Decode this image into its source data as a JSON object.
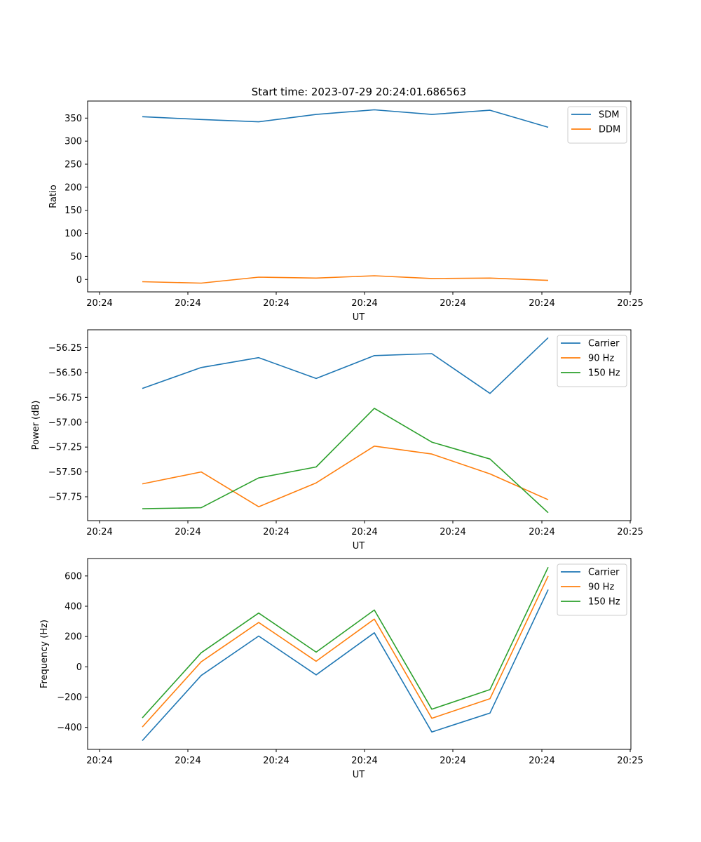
{
  "figure_title": "Start time: 2023-07-29 20:24:01.686563",
  "chart_data": [
    {
      "type": "line",
      "title": "Start time: 2023-07-29 20:24:01.686563",
      "xlabel": "UT",
      "ylabel": "Ratio",
      "xticks": [
        "20:24",
        "20:24",
        "20:24",
        "20:24",
        "20:24",
        "20:24",
        "20:25"
      ],
      "ylim": [
        -27,
        387
      ],
      "yticks": [
        0,
        50,
        100,
        150,
        200,
        250,
        300,
        350
      ],
      "ytick_labels": [
        "0",
        "50",
        "100",
        "150",
        "200",
        "250",
        "300",
        "350"
      ],
      "legend": "top-right",
      "series": [
        {
          "name": "SDM",
          "color": "#1f77b4",
          "values": [
            353,
            347,
            342,
            358,
            368,
            358,
            367,
            330
          ]
        },
        {
          "name": "DDM",
          "color": "#ff7f0e",
          "values": [
            -5,
            -8,
            5,
            3,
            8,
            2,
            3,
            -2
          ]
        }
      ]
    },
    {
      "type": "line",
      "title": "",
      "xlabel": "UT",
      "ylabel": "Power (dB)",
      "xticks": [
        "20:24",
        "20:24",
        "20:24",
        "20:24",
        "20:24",
        "20:24",
        "20:25"
      ],
      "ylim": [
        -57.99,
        -56.07
      ],
      "yticks": [
        -57.75,
        -57.5,
        -57.25,
        -57.0,
        -56.75,
        -56.5,
        -56.25
      ],
      "ytick_labels": [
        "−57.75",
        "−57.50",
        "−57.25",
        "−57.00",
        "−56.75",
        "−56.50",
        "−56.25"
      ],
      "legend": "top-right",
      "series": [
        {
          "name": "Carrier",
          "color": "#1f77b4",
          "values": [
            -56.66,
            -56.45,
            -56.35,
            -56.56,
            -56.33,
            -56.31,
            -56.71,
            -56.15
          ]
        },
        {
          "name": "90 Hz",
          "color": "#ff7f0e",
          "values": [
            -57.62,
            -57.5,
            -57.85,
            -57.61,
            -57.24,
            -57.32,
            -57.52,
            -57.78
          ]
        },
        {
          "name": "150 Hz",
          "color": "#2ca02c",
          "values": [
            -57.87,
            -57.86,
            -57.56,
            -57.45,
            -56.86,
            -57.2,
            -57.37,
            -57.91
          ]
        }
      ]
    },
    {
      "type": "line",
      "title": "",
      "xlabel": "UT",
      "ylabel": "Frequency (Hz)",
      "xticks": [
        "20:24",
        "20:24",
        "20:24",
        "20:24",
        "20:24",
        "20:24",
        "20:25"
      ],
      "ylim": [
        -545,
        715
      ],
      "yticks": [
        -400,
        -200,
        0,
        200,
        400,
        600
      ],
      "ytick_labels": [
        "−400",
        "−200",
        "0",
        "200",
        "400",
        "600"
      ],
      "legend": "top-right",
      "series": [
        {
          "name": "Carrier",
          "color": "#1f77b4",
          "values": [
            -487,
            -57,
            203,
            -53,
            225,
            -430,
            -305,
            510
          ]
        },
        {
          "name": "90 Hz",
          "color": "#ff7f0e",
          "values": [
            -397,
            33,
            293,
            37,
            315,
            -340,
            -210,
            600
          ]
        },
        {
          "name": "150 Hz",
          "color": "#2ca02c",
          "values": [
            -337,
            93,
            355,
            97,
            375,
            -280,
            -150,
            658
          ]
        }
      ]
    }
  ]
}
